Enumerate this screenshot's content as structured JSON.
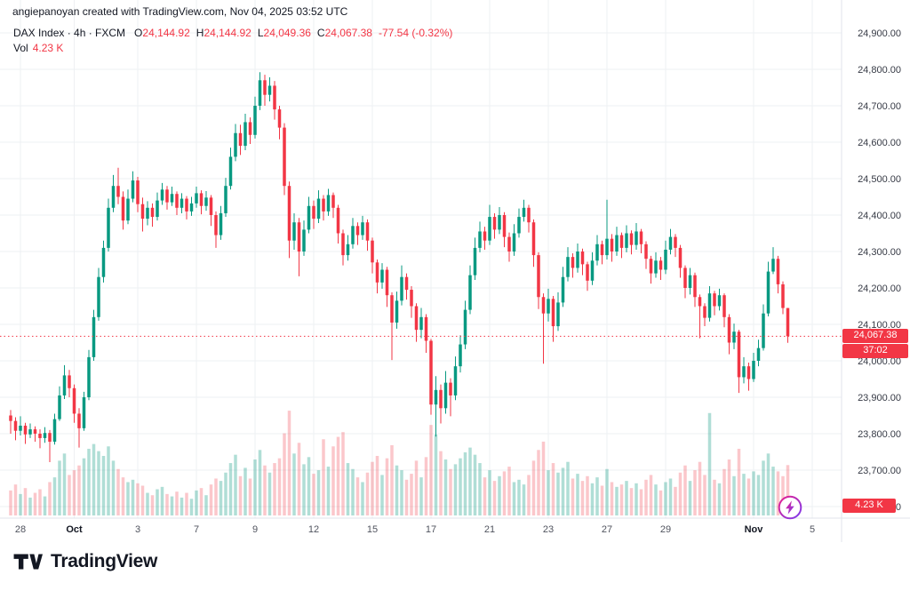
{
  "attribution": "angiepanoyan created with TradingView.com, Nov 04, 2025 03:52 UTC",
  "legend": {
    "title": "DAX Index · 4h · FXCM",
    "o_label": "O",
    "o": "24,144.92",
    "h_label": "H",
    "h": "24,144.92",
    "l_label": "L",
    "l": "24,049.36",
    "c_label": "C",
    "c": "24,067.38",
    "change": "-77.54 (-0.32%)",
    "vol_label": "Vol",
    "vol": "4.23 K"
  },
  "price_axis_badge": {
    "price": "24,067.38",
    "countdown": "37:02"
  },
  "volume_badge": "4.23 K",
  "footer": {
    "brand": "TradingView"
  },
  "chart_data": {
    "type": "candlestick",
    "symbol": "DAX Index",
    "interval": "4h",
    "exchange": "FXCM",
    "title": "DAX Index · 4h · FXCM",
    "last_price": 24067.38,
    "last_volume_k": 4.23,
    "price_axis": {
      "min": 23600,
      "max": 24900,
      "tick_step": 100
    },
    "grid": true,
    "legend_position": "top-left",
    "y_ticks": [
      {
        "label": "24,900.00",
        "value": 24900
      },
      {
        "label": "24,800.00",
        "value": 24800
      },
      {
        "label": "24,700.00",
        "value": 24700
      },
      {
        "label": "24,600.00",
        "value": 24600
      },
      {
        "label": "24,500.00",
        "value": 24500
      },
      {
        "label": "24,400.00",
        "value": 24400
      },
      {
        "label": "24,300.00",
        "value": 24300
      },
      {
        "label": "24,200.00",
        "value": 24200
      },
      {
        "label": "24,100.00",
        "value": 24100
      },
      {
        "label": "24,000.00",
        "value": 24000
      },
      {
        "label": "23,900.00",
        "value": 23900
      },
      {
        "label": "23,800.00",
        "value": 23800
      },
      {
        "label": "23,700.00",
        "value": 23700
      },
      {
        "label": "23,600.00",
        "value": 23600
      }
    ],
    "x_ticks": [
      {
        "label": "28",
        "bar": 2
      },
      {
        "label": "Oct",
        "bar": 13,
        "major": true
      },
      {
        "label": "3",
        "bar": 26
      },
      {
        "label": "7",
        "bar": 38
      },
      {
        "label": "9",
        "bar": 50
      },
      {
        "label": "12",
        "bar": 62
      },
      {
        "label": "15",
        "bar": 74
      },
      {
        "label": "17",
        "bar": 86
      },
      {
        "label": "21",
        "bar": 98
      },
      {
        "label": "23",
        "bar": 110
      },
      {
        "label": "27",
        "bar": 122
      },
      {
        "label": "29",
        "bar": 134
      },
      {
        "label": "Nov",
        "bar": 152,
        "major": true
      },
      {
        "label": "5",
        "bar": 164
      }
    ],
    "colors": {
      "up": "#089981",
      "down": "#f23645",
      "vol_up": "rgba(8,153,129,0.32)",
      "vol_down": "rgba(242,54,69,0.28)",
      "grid": "#eef0f3",
      "axis_line": "#e0e3eb",
      "last_price_line": "#f23645",
      "badge_bg": "#f23645"
    },
    "candles_format": [
      "open",
      "high",
      "low",
      "close",
      "volume_k"
    ],
    "candles": [
      [
        23850,
        23865,
        23800,
        23835,
        2.1
      ],
      [
        23835,
        23845,
        23782,
        23808,
        2.6
      ],
      [
        23808,
        23848,
        23795,
        23822,
        1.8
      ],
      [
        23822,
        23830,
        23772,
        23798,
        2.3
      ],
      [
        23798,
        23828,
        23788,
        23812,
        1.5
      ],
      [
        23812,
        23820,
        23778,
        23800,
        1.9
      ],
      [
        23800,
        23812,
        23760,
        23788,
        2.2
      ],
      [
        23788,
        23818,
        23775,
        23802,
        1.6
      ],
      [
        23802,
        23810,
        23722,
        23778,
        2.8
      ],
      [
        23778,
        23855,
        23770,
        23840,
        3.2
      ],
      [
        23840,
        23930,
        23835,
        23905,
        4.6
      ],
      [
        23905,
        23988,
        23895,
        23960,
        5.2
      ],
      [
        23960,
        23975,
        23900,
        23925,
        3.4
      ],
      [
        23925,
        23935,
        23830,
        23855,
        3.8
      ],
      [
        23855,
        23870,
        23762,
        23815,
        4.2
      ],
      [
        23815,
        23915,
        23808,
        23900,
        4.8
      ],
      [
        23900,
        24030,
        23892,
        24010,
        5.6
      ],
      [
        24010,
        24140,
        24000,
        24120,
        6.0
      ],
      [
        24120,
        24255,
        24110,
        24230,
        5.4
      ],
      [
        24230,
        24330,
        24215,
        24310,
        5.0
      ],
      [
        24310,
        24445,
        24300,
        24420,
        5.8
      ],
      [
        24420,
        24510,
        24408,
        24480,
        4.6
      ],
      [
        24480,
        24530,
        24430,
        24450,
        3.9
      ],
      [
        24450,
        24465,
        24360,
        24385,
        3.2
      ],
      [
        24385,
        24470,
        24375,
        24445,
        2.8
      ],
      [
        24445,
        24520,
        24435,
        24495,
        3.0
      ],
      [
        24495,
        24505,
        24408,
        24430,
        2.7
      ],
      [
        24430,
        24448,
        24355,
        24390,
        2.5
      ],
      [
        24390,
        24438,
        24372,
        24420,
        1.9
      ],
      [
        24420,
        24432,
        24368,
        24395,
        1.7
      ],
      [
        24395,
        24462,
        24385,
        24440,
        2.2
      ],
      [
        24440,
        24488,
        24428,
        24470,
        2.4
      ],
      [
        24470,
        24480,
        24415,
        24435,
        1.8
      ],
      [
        24435,
        24478,
        24425,
        24458,
        1.6
      ],
      [
        24458,
        24465,
        24400,
        24420,
        2.0
      ],
      [
        24420,
        24460,
        24405,
        24445,
        1.5
      ],
      [
        24445,
        24452,
        24388,
        24410,
        1.9
      ],
      [
        24410,
        24450,
        24398,
        24432,
        1.4
      ],
      [
        24432,
        24478,
        24420,
        24460,
        2.1
      ],
      [
        24460,
        24468,
        24402,
        24425,
        2.3
      ],
      [
        24425,
        24466,
        24412,
        24448,
        1.7
      ],
      [
        24448,
        24455,
        24370,
        24400,
        2.6
      ],
      [
        24400,
        24410,
        24310,
        24345,
        3.1
      ],
      [
        24345,
        24425,
        24332,
        24405,
        2.9
      ],
      [
        24405,
        24502,
        24395,
        24480,
        3.6
      ],
      [
        24480,
        24585,
        24470,
        24560,
        4.4
      ],
      [
        24560,
        24650,
        24548,
        24625,
        5.1
      ],
      [
        24625,
        24648,
        24565,
        24590,
        3.3
      ],
      [
        24590,
        24678,
        24578,
        24655,
        4.0
      ],
      [
        24655,
        24668,
        24595,
        24620,
        3.1
      ],
      [
        24620,
        24725,
        24610,
        24700,
        4.7
      ],
      [
        24700,
        24792,
        24688,
        24770,
        5.5
      ],
      [
        24770,
        24785,
        24700,
        24730,
        4.2
      ],
      [
        24730,
        24778,
        24712,
        24755,
        3.6
      ],
      [
        24755,
        24768,
        24662,
        24690,
        4.4
      ],
      [
        24690,
        24700,
        24608,
        24640,
        4.8
      ],
      [
        24640,
        24652,
        24455,
        24480,
        6.9
      ],
      [
        24480,
        24492,
        24282,
        24330,
        8.8
      ],
      [
        24330,
        24405,
        24305,
        24380,
        5.2
      ],
      [
        24380,
        24392,
        24232,
        24300,
        6.1
      ],
      [
        24300,
        24385,
        24288,
        24360,
        4.3
      ],
      [
        24360,
        24450,
        24350,
        24425,
        4.9
      ],
      [
        24425,
        24440,
        24362,
        24390,
        3.5
      ],
      [
        24390,
        24468,
        24378,
        24445,
        3.8
      ],
      [
        24445,
        24455,
        24385,
        24410,
        6.4
      ],
      [
        24410,
        24472,
        24398,
        24455,
        4.1
      ],
      [
        24455,
        24462,
        24392,
        24420,
        5.8
      ],
      [
        24420,
        24428,
        24322,
        24350,
        6.6
      ],
      [
        24350,
        24360,
        24262,
        24290,
        7.0
      ],
      [
        24290,
        24345,
        24275,
        24320,
        4.4
      ],
      [
        24320,
        24392,
        24308,
        24370,
        3.9
      ],
      [
        24370,
        24380,
        24318,
        24345,
        3.2
      ],
      [
        24345,
        24398,
        24332,
        24380,
        2.8
      ],
      [
        24380,
        24388,
        24302,
        24330,
        3.6
      ],
      [
        24330,
        24338,
        24240,
        24270,
        4.5
      ],
      [
        24270,
        24278,
        24185,
        24215,
        5.0
      ],
      [
        24215,
        24268,
        24198,
        24250,
        3.4
      ],
      [
        24250,
        24258,
        24148,
        24180,
        4.8
      ],
      [
        24180,
        24188,
        24002,
        24105,
        5.9
      ],
      [
        24105,
        24190,
        24088,
        24165,
        4.2
      ],
      [
        24165,
        24262,
        24152,
        24230,
        3.8
      ],
      [
        24230,
        24240,
        24168,
        24195,
        3.0
      ],
      [
        24195,
        24205,
        24118,
        24150,
        3.5
      ],
      [
        24150,
        24158,
        24052,
        24085,
        4.6
      ],
      [
        24085,
        24145,
        24062,
        24120,
        3.2
      ],
      [
        24120,
        24128,
        24022,
        24055,
        4.9
      ],
      [
        24055,
        24060,
        23852,
        23880,
        7.6
      ],
      [
        23880,
        23958,
        23792,
        23920,
        6.8
      ],
      [
        23920,
        23935,
        23828,
        23870,
        5.4
      ],
      [
        23870,
        23972,
        23855,
        23940,
        4.7
      ],
      [
        23940,
        23952,
        23848,
        23905,
        3.9
      ],
      [
        23905,
        24012,
        23892,
        23985,
        4.3
      ],
      [
        23985,
        24070,
        23968,
        24045,
        4.8
      ],
      [
        24045,
        24165,
        24032,
        24140,
        5.3
      ],
      [
        24140,
        24262,
        24128,
        24235,
        5.7
      ],
      [
        24235,
        24338,
        24222,
        24310,
        5.1
      ],
      [
        24310,
        24382,
        24298,
        24355,
        4.4
      ],
      [
        24355,
        24368,
        24305,
        24330,
        3.2
      ],
      [
        24330,
        24428,
        24318,
        24395,
        3.8
      ],
      [
        24395,
        24405,
        24335,
        24360,
        2.9
      ],
      [
        24360,
        24422,
        24348,
        24400,
        3.3
      ],
      [
        24400,
        24408,
        24312,
        24340,
        3.7
      ],
      [
        24340,
        24352,
        24272,
        24300,
        4.1
      ],
      [
        24300,
        24375,
        24288,
        24350,
        2.8
      ],
      [
        24350,
        24418,
        24338,
        24395,
        3.0
      ],
      [
        24395,
        24442,
        24382,
        24420,
        2.6
      ],
      [
        24420,
        24428,
        24352,
        24380,
        3.4
      ],
      [
        24380,
        24388,
        24258,
        24290,
        4.6
      ],
      [
        24290,
        24298,
        24142,
        24175,
        5.5
      ],
      [
        24175,
        24185,
        23992,
        24130,
        6.2
      ],
      [
        24130,
        24198,
        24108,
        24170,
        3.8
      ],
      [
        24170,
        24178,
        24052,
        24095,
        4.4
      ],
      [
        24095,
        24188,
        24082,
        24160,
        3.6
      ],
      [
        24160,
        24258,
        24148,
        24230,
        4.0
      ],
      [
        24230,
        24312,
        24218,
        24285,
        4.5
      ],
      [
        24285,
        24295,
        24228,
        24255,
        3.1
      ],
      [
        24255,
        24322,
        24242,
        24300,
        3.5
      ],
      [
        24300,
        24308,
        24235,
        24265,
        2.9
      ],
      [
        24265,
        24272,
        24192,
        24220,
        3.3
      ],
      [
        24220,
        24298,
        24208,
        24275,
        2.7
      ],
      [
        24275,
        24345,
        24262,
        24320,
        3.2
      ],
      [
        24320,
        24330,
        24265,
        24290,
        2.5
      ],
      [
        24290,
        24442,
        24278,
        24335,
        3.9
      ],
      [
        24335,
        24348,
        24272,
        24300,
        2.8
      ],
      [
        24300,
        24368,
        24288,
        24345,
        2.4
      ],
      [
        24345,
        24352,
        24282,
        24310,
        2.6
      ],
      [
        24310,
        24372,
        24298,
        24350,
        2.9
      ],
      [
        24350,
        24358,
        24292,
        24318,
        2.3
      ],
      [
        24318,
        24378,
        24305,
        24355,
        2.7
      ],
      [
        24355,
        24362,
        24295,
        24320,
        2.2
      ],
      [
        24320,
        24328,
        24252,
        24280,
        3.0
      ],
      [
        24280,
        24288,
        24212,
        24240,
        3.4
      ],
      [
        24240,
        24298,
        24228,
        24275,
        2.6
      ],
      [
        24275,
        24285,
        24222,
        24250,
        2.1
      ],
      [
        24250,
        24330,
        24238,
        24305,
        2.8
      ],
      [
        24305,
        24362,
        24292,
        24340,
        3.1
      ],
      [
        24340,
        24348,
        24285,
        24310,
        2.4
      ],
      [
        24310,
        24318,
        24228,
        24255,
        3.6
      ],
      [
        24255,
        24262,
        24172,
        24200,
        4.2
      ],
      [
        24200,
        24255,
        24182,
        24235,
        2.9
      ],
      [
        24235,
        24242,
        24148,
        24175,
        3.8
      ],
      [
        24175,
        24182,
        24062,
        24150,
        4.5
      ],
      [
        24150,
        24158,
        24095,
        24118,
        3.4
      ],
      [
        24118,
        24205,
        24108,
        24185,
        8.6
      ],
      [
        24185,
        24192,
        24125,
        24150,
        3.0
      ],
      [
        24150,
        24198,
        24138,
        24180,
        2.7
      ],
      [
        24180,
        24185,
        24092,
        24120,
        3.9
      ],
      [
        24120,
        24128,
        24018,
        24050,
        4.7
      ],
      [
        24050,
        24102,
        24032,
        24080,
        3.3
      ],
      [
        24080,
        24085,
        23912,
        23955,
        5.6
      ],
      [
        23955,
        24010,
        23938,
        23985,
        3.5
      ],
      [
        23985,
        23995,
        23918,
        23950,
        3.1
      ],
      [
        23950,
        24022,
        23942,
        24000,
        3.7
      ],
      [
        24000,
        24058,
        23985,
        24035,
        3.4
      ],
      [
        24035,
        24155,
        24028,
        24130,
        4.6
      ],
      [
        24130,
        24272,
        24122,
        24245,
        5.2
      ],
      [
        24245,
        24312,
        24238,
        24280,
        4.1
      ],
      [
        24280,
        24288,
        24185,
        24210,
        3.7
      ],
      [
        24210,
        24218,
        24128,
        24144.92,
        3.3
      ],
      [
        24144.92,
        24144.92,
        24049.36,
        24067.38,
        4.23
      ]
    ]
  }
}
